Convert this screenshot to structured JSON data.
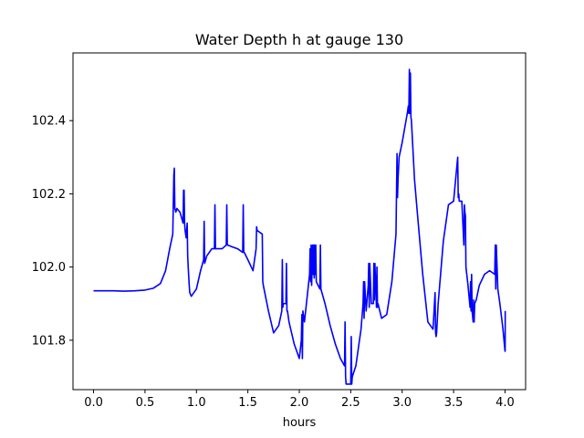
{
  "chart_data": {
    "type": "line",
    "title": "Water Depth h at gauge 130",
    "xlabel": "hours",
    "ylabel": "",
    "xlim": [
      -0.2,
      4.2
    ],
    "ylim": [
      101.665,
      102.585
    ],
    "xticks": [
      0.0,
      0.5,
      1.0,
      1.5,
      2.0,
      2.5,
      3.0,
      3.5,
      4.0
    ],
    "xtick_labels": [
      "0.0",
      "0.5",
      "1.0",
      "1.5",
      "2.0",
      "2.5",
      "3.0",
      "3.5",
      "4.0"
    ],
    "yticks": [
      101.8,
      102.0,
      102.2,
      102.4
    ],
    "ytick_labels": [
      "101.8",
      "102.0",
      "102.2",
      "102.4"
    ],
    "grid": false,
    "series": [
      {
        "color": "#0000ff",
        "x": [
          0.0,
          0.1,
          0.2,
          0.3,
          0.4,
          0.5,
          0.58,
          0.65,
          0.7,
          0.74,
          0.77,
          0.78,
          0.785,
          0.79,
          0.795,
          0.8,
          0.81,
          0.84,
          0.87,
          0.875,
          0.88,
          0.885,
          0.89,
          0.9,
          0.905,
          0.91,
          0.915,
          0.92,
          0.93,
          0.935,
          0.95,
          1.0,
          1.04,
          1.07,
          1.075,
          1.08,
          1.1,
          1.15,
          1.175,
          1.18,
          1.185,
          1.2,
          1.25,
          1.29,
          1.295,
          1.3,
          1.305,
          1.35,
          1.4,
          1.45,
          1.455,
          1.46,
          1.465,
          1.5,
          1.55,
          1.58,
          1.585,
          1.59,
          1.64,
          1.645,
          1.65,
          1.7,
          1.75,
          1.8,
          1.83,
          1.835,
          1.84,
          1.845,
          1.87,
          1.875,
          1.88,
          1.885,
          1.9,
          1.95,
          2.0,
          2.02,
          2.025,
          2.03,
          2.035,
          2.05,
          2.1,
          2.105,
          2.11,
          2.115,
          2.12,
          2.13,
          2.135,
          2.14,
          2.145,
          2.15,
          2.155,
          2.16,
          2.165,
          2.2,
          2.205,
          2.21,
          2.25,
          2.3,
          2.35,
          2.4,
          2.44,
          2.445,
          2.45,
          2.455,
          2.5,
          2.505,
          2.51,
          2.515,
          2.55,
          2.6,
          2.62,
          2.625,
          2.63,
          2.635,
          2.65,
          2.67,
          2.675,
          2.68,
          2.685,
          2.7,
          2.72,
          2.725,
          2.73,
          2.735,
          2.75,
          2.755,
          2.76,
          2.765,
          2.8,
          2.85,
          2.9,
          2.94,
          2.945,
          2.95,
          2.955,
          2.96,
          2.97,
          3.0,
          3.05,
          3.06,
          3.065,
          3.07,
          3.075,
          3.08,
          3.085,
          3.09,
          3.12,
          3.15,
          3.2,
          3.25,
          3.3,
          3.32,
          3.325,
          3.33,
          3.335,
          3.35,
          3.4,
          3.45,
          3.5,
          3.54,
          3.545,
          3.55,
          3.555,
          3.58,
          3.6,
          3.605,
          3.61,
          3.615,
          3.62,
          3.64,
          3.66,
          3.665,
          3.67,
          3.675,
          3.68,
          3.69,
          3.695,
          3.7,
          3.705,
          3.72,
          3.75,
          3.8,
          3.85,
          3.9,
          3.905,
          3.91,
          3.915,
          3.93,
          3.95,
          3.98,
          4.0,
          4.001,
          4.002
        ],
        "y": [
          101.935,
          101.935,
          101.935,
          101.934,
          101.935,
          101.937,
          101.942,
          101.955,
          101.99,
          102.05,
          102.09,
          102.25,
          102.27,
          102.16,
          102.155,
          102.15,
          102.16,
          102.15,
          102.12,
          102.21,
          102.21,
          102.12,
          102.1,
          102.08,
          102.1,
          102.12,
          102.03,
          102.0,
          101.95,
          101.93,
          101.92,
          101.94,
          101.99,
          102.02,
          102.125,
          102.01,
          102.03,
          102.05,
          102.05,
          102.17,
          102.05,
          102.05,
          102.05,
          102.06,
          102.17,
          102.06,
          102.06,
          102.055,
          102.05,
          102.04,
          102.17,
          102.04,
          102.04,
          102.02,
          101.99,
          102.05,
          102.11,
          102.1,
          102.09,
          101.96,
          101.95,
          101.88,
          101.82,
          101.84,
          101.88,
          102.02,
          101.89,
          101.9,
          101.9,
          102.01,
          101.88,
          101.88,
          101.85,
          101.79,
          101.75,
          101.8,
          101.87,
          101.75,
          101.88,
          101.85,
          101.98,
          102.05,
          101.96,
          102.06,
          101.95,
          102.06,
          101.98,
          102.06,
          101.97,
          102.06,
          101.98,
          102.06,
          101.96,
          101.94,
          102.06,
          101.94,
          101.9,
          101.84,
          101.79,
          101.75,
          101.73,
          101.85,
          101.7,
          101.68,
          101.68,
          101.81,
          101.68,
          101.7,
          101.73,
          101.83,
          101.9,
          101.96,
          101.86,
          101.96,
          101.88,
          101.95,
          102.01,
          101.89,
          102.01,
          101.9,
          101.9,
          102.01,
          101.91,
          102.01,
          101.89,
          102.0,
          101.89,
          101.9,
          101.86,
          101.87,
          101.96,
          102.09,
          102.2,
          102.31,
          102.19,
          102.24,
          102.3,
          102.34,
          102.42,
          102.44,
          102.42,
          102.54,
          102.42,
          102.53,
          102.41,
          102.4,
          102.24,
          102.14,
          101.98,
          101.85,
          101.83,
          101.93,
          101.82,
          101.81,
          101.82,
          101.9,
          102.07,
          102.17,
          102.18,
          102.3,
          102.19,
          102.2,
          102.18,
          102.18,
          102.06,
          102.17,
          102.15,
          102.14,
          102.0,
          101.95,
          101.89,
          101.96,
          101.88,
          101.98,
          101.88,
          101.85,
          101.91,
          101.85,
          101.9,
          101.91,
          101.95,
          101.98,
          101.99,
          101.98,
          102.06,
          101.94,
          102.06,
          101.94,
          101.9,
          101.83,
          101.77,
          101.77,
          101.88
        ]
      }
    ]
  }
}
